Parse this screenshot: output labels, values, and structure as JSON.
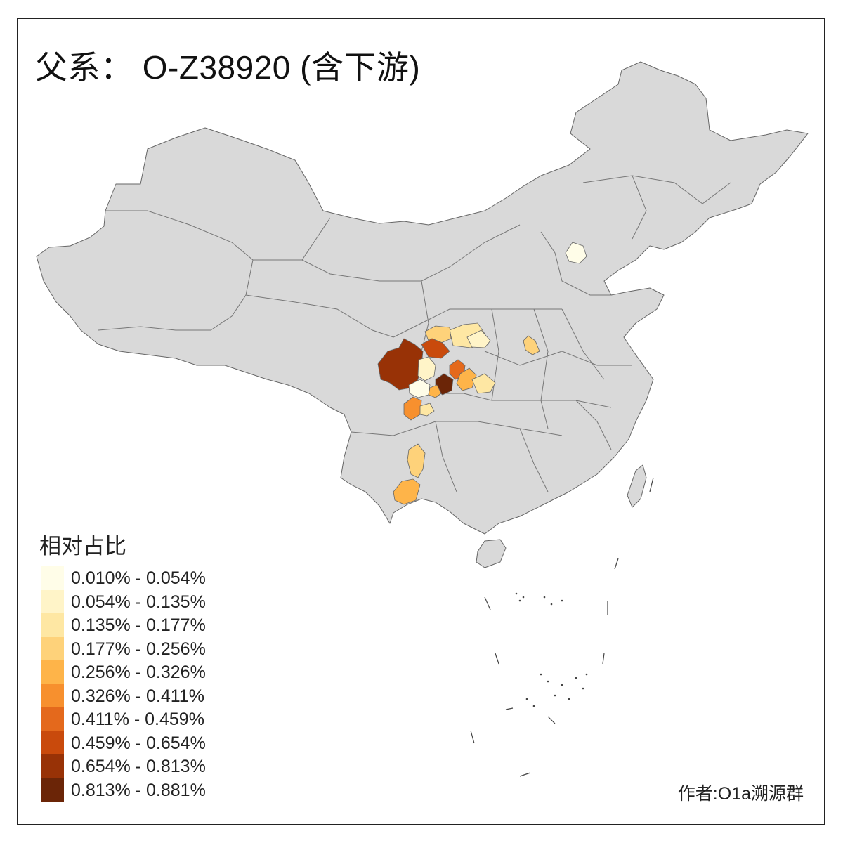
{
  "title": "父系： O-Z38920 (含下游)",
  "legend": {
    "title": "相对占比",
    "items": [
      {
        "label": "0.010% - 0.054%",
        "color": "#fffde8"
      },
      {
        "label": "0.054% - 0.135%",
        "color": "#fff4c8"
      },
      {
        "label": "0.135% - 0.177%",
        "color": "#fee7a3"
      },
      {
        "label": "0.177% - 0.256%",
        "color": "#fed27a"
      },
      {
        "label": "0.256% - 0.326%",
        "color": "#feb449"
      },
      {
        "label": "0.326% - 0.411%",
        "color": "#f7902e"
      },
      {
        "label": "0.411% - 0.459%",
        "color": "#e4691c"
      },
      {
        "label": "0.459% - 0.654%",
        "color": "#c94a0c"
      },
      {
        "label": "0.654% - 0.813%",
        "color": "#983206"
      },
      {
        "label": "0.813% - 0.881%",
        "color": "#6b2507"
      }
    ]
  },
  "author": "作者:O1a溯源群",
  "map": {
    "base_color": "#d9d9d9",
    "border_color": "#666666"
  }
}
